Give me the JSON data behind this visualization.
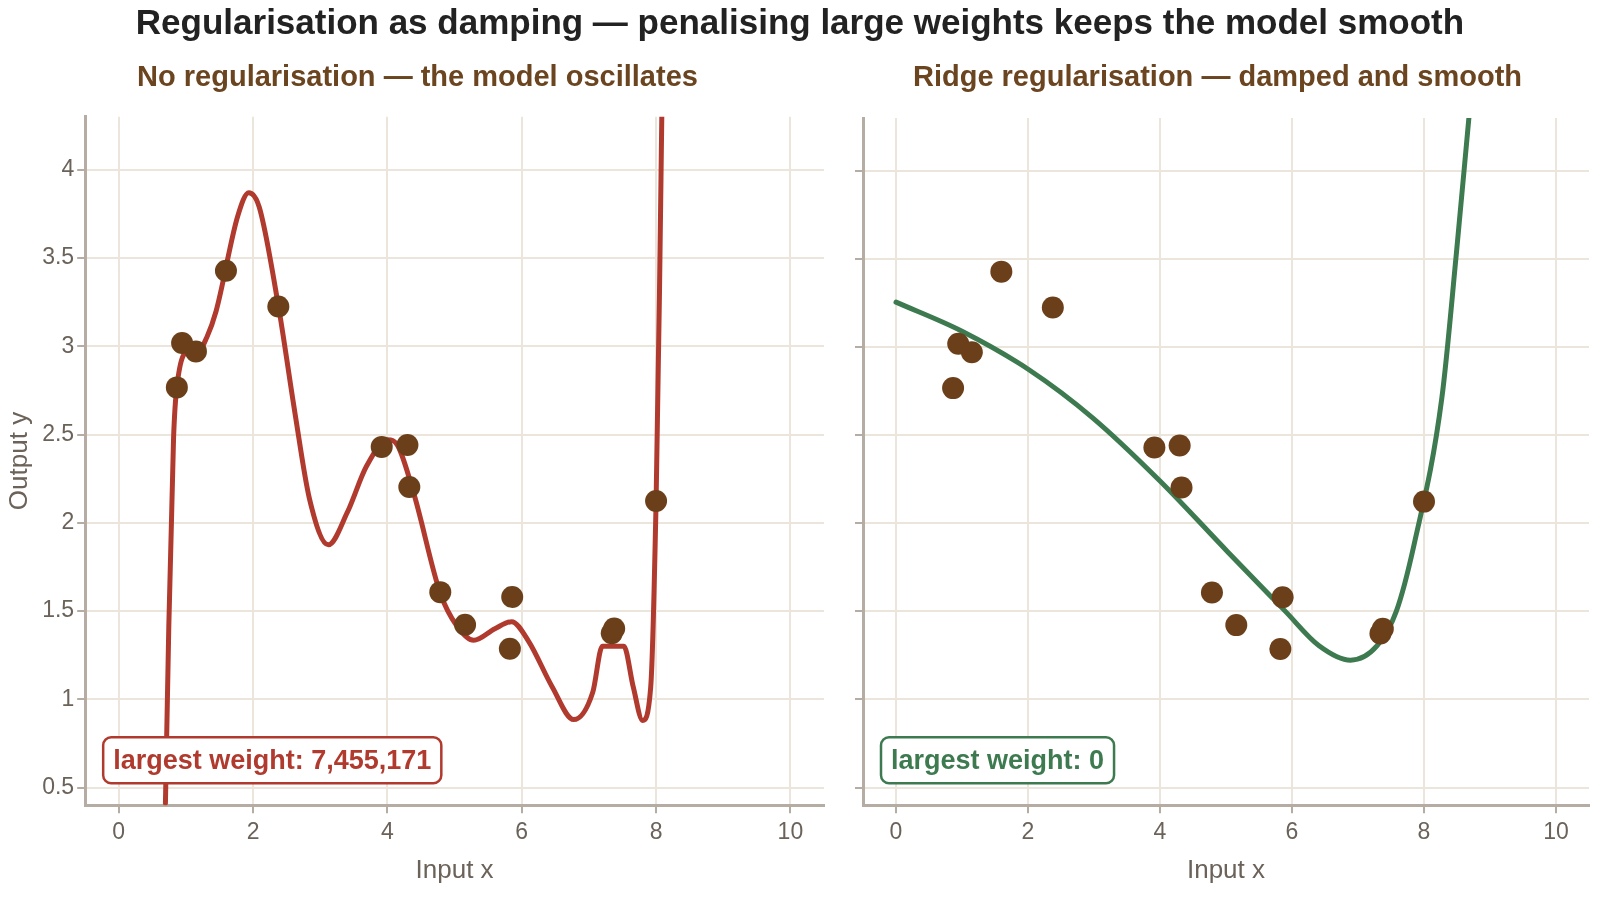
{
  "chart_data": [
    {
      "type": "scatter",
      "title": "Regularisation as damping — penalising large weights keeps the model smooth",
      "subtitle": "No regularisation — the model oscillates",
      "xlabel": "Input x",
      "ylabel": "Output y",
      "xlim": [
        -0.5,
        10.5
      ],
      "xticks": [
        0,
        2,
        4,
        6,
        8,
        10
      ],
      "ylim": [
        0.4,
        4.3
      ],
      "yticks": [
        0.5,
        1.0,
        1.5,
        2.0,
        2.5,
        3.0,
        3.5,
        4.0
      ],
      "grid": true,
      "legend": false,
      "annotations": [
        "largest weight: 7,455,171"
      ],
      "series": [
        {
          "type": "line",
          "color": "#b03a2e",
          "marker": "none",
          "line_style": "solid",
          "x": [
            0.695,
            0.745,
            0.816,
            0.865,
            1.05,
            1.17,
            1.31,
            1.45,
            1.773,
            1.936,
            2.09,
            2.376,
            2.624,
            2.837,
            3.12,
            3.404,
            3.688,
            4.007,
            4.149,
            4.397,
            4.787,
            5.035,
            5.284,
            5.6,
            5.85,
            6.1,
            6.454,
            6.773,
            7.057,
            7.2,
            7.52,
            7.66,
            7.8,
            7.92,
            8.0,
            8.05,
            8.085
          ],
          "values": [
            0.41,
            1.41,
            2.48,
            2.77,
            2.97,
            2.965,
            3.05,
            3.2,
            3.74,
            3.87,
            3.79,
            3.23,
            2.62,
            2.14,
            1.875,
            2.06,
            2.32,
            2.47,
            2.44,
            2.16,
            1.6,
            1.415,
            1.334,
            1.4,
            1.44,
            1.33,
            1.07,
            0.885,
            1.04,
            1.3,
            1.3,
            1.07,
            0.88,
            1.07,
            2.12,
            3.29,
            4.3
          ]
        },
        {
          "type": "scatter",
          "color": "#6b3f1a",
          "marker": "circle",
          "x": [
            0.865,
            0.943,
            1.149,
            1.596,
            2.376,
            3.915,
            4.298,
            4.326,
            4.787,
            5.156,
            5.858,
            5.823,
            7.34,
            7.376,
            8.0
          ],
          "values": [
            2.767,
            3.019,
            2.971,
            3.428,
            3.225,
            2.43,
            2.441,
            2.203,
            1.607,
            1.422,
            1.58,
            1.286,
            1.374,
            1.401,
            2.123
          ]
        }
      ]
    },
    {
      "type": "scatter",
      "subtitle": "Ridge regularisation — damped and smooth",
      "xlabel": "Input x",
      "xlim": [
        -0.5,
        10.5
      ],
      "xticks": [
        0,
        2,
        4,
        6,
        8,
        10
      ],
      "ylim": [
        0.4,
        4.3
      ],
      "yticks": [
        0.5,
        1.0,
        1.5,
        2.0,
        2.5,
        3.0,
        3.5,
        4.0
      ],
      "grid": true,
      "legend": false,
      "tick_labels": "x",
      "annotations": [
        "largest weight: 0"
      ],
      "series": [
        {
          "type": "line",
          "color": "#3d7a50",
          "marker": "none",
          "line_style": "solid",
          "x": [
            0,
            1.0,
            2.02,
            2.975,
            4.0,
            5.02,
            5.9,
            6.41,
            6.886,
            7.29,
            7.58,
            7.85,
            8.27,
            8.49,
            8.68
          ],
          "values": [
            3.255,
            3.09,
            2.87,
            2.6,
            2.24,
            1.84,
            1.5,
            1.305,
            1.223,
            1.305,
            1.5,
            1.88,
            2.71,
            3.53,
            4.3
          ]
        },
        {
          "type": "scatter",
          "color": "#6b3f1a",
          "marker": "circle",
          "x": [
            0.865,
            0.943,
            1.149,
            1.596,
            2.376,
            3.915,
            4.298,
            4.326,
            4.787,
            5.156,
            5.858,
            5.823,
            7.34,
            7.376,
            8.0
          ],
          "values": [
            2.767,
            3.019,
            2.971,
            3.428,
            3.225,
            2.43,
            2.441,
            2.203,
            1.607,
            1.422,
            1.58,
            1.286,
            1.374,
            1.401,
            2.123
          ]
        }
      ]
    }
  ]
}
